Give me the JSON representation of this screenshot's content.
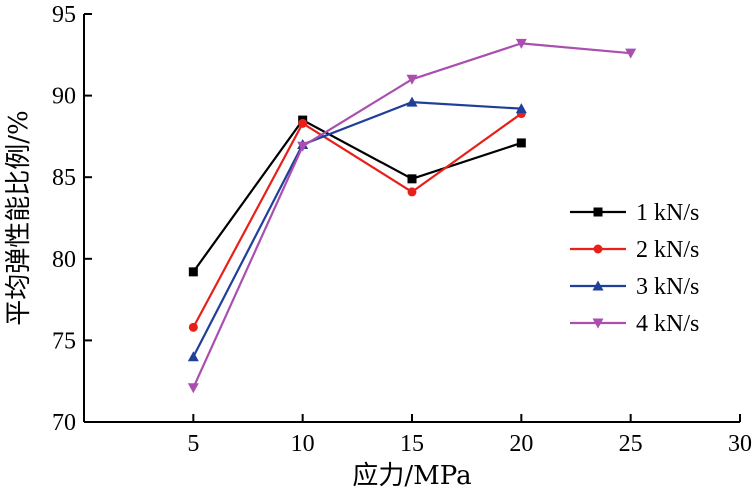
{
  "chart_data": {
    "type": "line",
    "title": "",
    "xlabel": "应力/MPa",
    "ylabel": "平均弹性能比例/%",
    "xlim": [
      0,
      30
    ],
    "ylim": [
      70,
      95
    ],
    "x_ticks": [
      "5",
      "10",
      "15",
      "20",
      "25",
      "30"
    ],
    "y_ticks": [
      "70",
      "75",
      "80",
      "85",
      "90",
      "95"
    ],
    "grid": false,
    "legend_position": "right",
    "series": [
      {
        "name": "1 kN/s",
        "color": "#000000",
        "marker": "square",
        "x": [
          5,
          10,
          15,
          20
        ],
        "y": [
          79.2,
          88.5,
          84.9,
          87.1
        ]
      },
      {
        "name": "2 kN/s",
        "color": "#e8201a",
        "marker": "circle",
        "x": [
          5,
          10,
          15,
          20
        ],
        "y": [
          75.8,
          88.3,
          84.1,
          88.9
        ]
      },
      {
        "name": "3 kN/s",
        "color": "#1f3f9a",
        "marker": "triangle-up",
        "x": [
          5,
          10,
          15,
          20
        ],
        "y": [
          74.0,
          87.0,
          89.6,
          89.2
        ]
      },
      {
        "name": "4 kN/s",
        "color": "#a94fb0",
        "marker": "triangle-down",
        "x": [
          5,
          10,
          15,
          20,
          25
        ],
        "y": [
          72.1,
          86.9,
          91.0,
          93.2,
          92.6
        ]
      }
    ]
  }
}
